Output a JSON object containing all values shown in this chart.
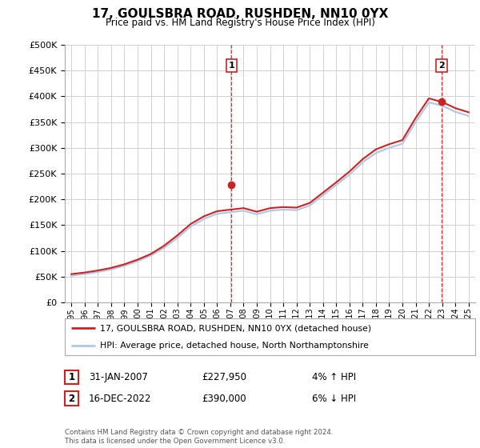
{
  "title": "17, GOULSBRA ROAD, RUSHDEN, NN10 0YX",
  "subtitle": "Price paid vs. HM Land Registry's House Price Index (HPI)",
  "legend_line1": "17, GOULSBRA ROAD, RUSHDEN, NN10 0YX (detached house)",
  "legend_line2": "HPI: Average price, detached house, North Northamptonshire",
  "footer": "Contains HM Land Registry data © Crown copyright and database right 2024.\nThis data is licensed under the Open Government Licence v3.0.",
  "annotation1_date": "31-JAN-2007",
  "annotation1_price": "£227,950",
  "annotation1_hpi": "4% ↑ HPI",
  "annotation2_date": "16-DEC-2022",
  "annotation2_price": "£390,000",
  "annotation2_hpi": "6% ↓ HPI",
  "hpi_color": "#aec6e8",
  "price_color": "#cc2222",
  "marker_color": "#cc2222",
  "vline_color": "#cc2222",
  "grid_color": "#d0d0d0",
  "bg_color": "#ffffff",
  "ylim": [
    0,
    500000
  ],
  "yticks": [
    0,
    50000,
    100000,
    150000,
    200000,
    250000,
    300000,
    350000,
    400000,
    450000,
    500000
  ],
  "years_x": [
    1995,
    1996,
    1997,
    1998,
    1999,
    2000,
    2001,
    2002,
    2003,
    2004,
    2005,
    2006,
    2007,
    2008,
    2009,
    2010,
    2011,
    2012,
    2013,
    2014,
    2015,
    2016,
    2017,
    2018,
    2019,
    2020,
    2021,
    2022,
    2023,
    2024,
    2025
  ],
  "hpi_values": [
    52000,
    55000,
    59000,
    64000,
    71000,
    80000,
    91000,
    106000,
    125000,
    147000,
    162000,
    172000,
    175000,
    178000,
    171000,
    178000,
    180000,
    179000,
    188000,
    208000,
    228000,
    248000,
    272000,
    290000,
    300000,
    308000,
    350000,
    388000,
    382000,
    370000,
    362000
  ],
  "price_values": [
    55000,
    58000,
    62000,
    67000,
    74000,
    83000,
    94000,
    110000,
    130000,
    152000,
    167000,
    177000,
    180000,
    183000,
    176000,
    183000,
    185000,
    184000,
    193000,
    213000,
    233000,
    254000,
    278000,
    297000,
    307000,
    315000,
    358000,
    396000,
    389000,
    377000,
    369000
  ],
  "sale1_x": 2007.08,
  "sale1_y": 227950,
  "sale2_x": 2022.96,
  "sale2_y": 390000,
  "xlim_left": 1994.5,
  "xlim_right": 2025.5
}
